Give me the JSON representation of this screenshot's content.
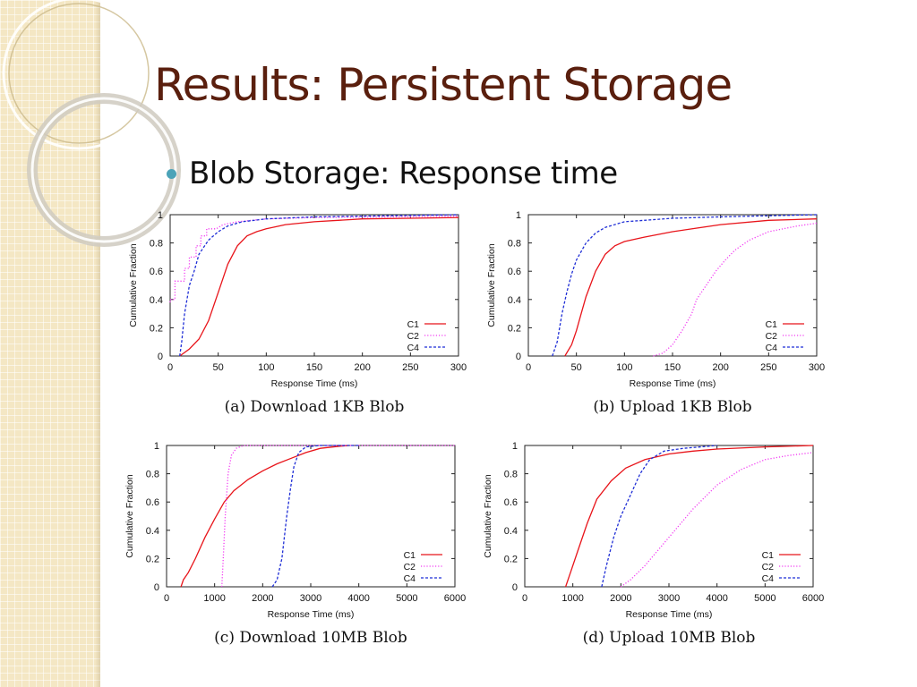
{
  "slide": {
    "title": "Results: Persistent Storage",
    "bullet": "Blob Storage: Response time"
  },
  "colors": {
    "C1": "#e8141a",
    "C2": "#f23af2",
    "C4": "#1f2ed6"
  },
  "chart_data": [
    {
      "type": "line",
      "caption": "(a) Download 1KB Blob",
      "xlabel": "Response Time (ms)",
      "ylabel": "Cumulative Fraction",
      "xlim": [
        0,
        300
      ],
      "ylim": [
        0,
        1
      ],
      "xticks": [
        0,
        50,
        100,
        150,
        200,
        250,
        300
      ],
      "yticks": [
        0,
        0.2,
        0.4,
        0.6,
        0.8,
        1
      ],
      "legend_position": "bottom-right",
      "series": [
        {
          "name": "C1",
          "style": "solid",
          "points": [
            [
              10,
              0
            ],
            [
              20,
              0.05
            ],
            [
              30,
              0.12
            ],
            [
              40,
              0.25
            ],
            [
              50,
              0.45
            ],
            [
              60,
              0.65
            ],
            [
              70,
              0.78
            ],
            [
              80,
              0.85
            ],
            [
              90,
              0.88
            ],
            [
              100,
              0.9
            ],
            [
              120,
              0.93
            ],
            [
              150,
              0.95
            ],
            [
              200,
              0.97
            ],
            [
              250,
              0.975
            ],
            [
              300,
              0.98
            ]
          ]
        },
        {
          "name": "C2",
          "style": "dotted",
          "points": [
            [
              0,
              0.38
            ],
            [
              0,
              0.4
            ],
            [
              5,
              0.4
            ],
            [
              5,
              0.53
            ],
            [
              15,
              0.53
            ],
            [
              15,
              0.62
            ],
            [
              20,
              0.62
            ],
            [
              20,
              0.7
            ],
            [
              27,
              0.7
            ],
            [
              27,
              0.78
            ],
            [
              32,
              0.78
            ],
            [
              32,
              0.85
            ],
            [
              38,
              0.85
            ],
            [
              38,
              0.9
            ],
            [
              48,
              0.9
            ],
            [
              55,
              0.93
            ],
            [
              70,
              0.95
            ],
            [
              100,
              0.97
            ],
            [
              150,
              0.98
            ],
            [
              300,
              0.99
            ]
          ]
        },
        {
          "name": "C4",
          "style": "dashed",
          "points": [
            [
              10,
              0
            ],
            [
              12,
              0.1
            ],
            [
              15,
              0.3
            ],
            [
              20,
              0.5
            ],
            [
              25,
              0.6
            ],
            [
              30,
              0.72
            ],
            [
              40,
              0.82
            ],
            [
              50,
              0.88
            ],
            [
              60,
              0.92
            ],
            [
              75,
              0.95
            ],
            [
              100,
              0.97
            ],
            [
              150,
              0.985
            ],
            [
              200,
              0.99
            ],
            [
              300,
              1
            ]
          ]
        }
      ]
    },
    {
      "type": "line",
      "caption": "(b) Upload 1KB Blob",
      "xlabel": "Response Time (ms)",
      "ylabel": "Cumulative Fraction",
      "xlim": [
        0,
        300
      ],
      "ylim": [
        0,
        1
      ],
      "xticks": [
        0,
        50,
        100,
        150,
        200,
        250,
        300
      ],
      "yticks": [
        0,
        0.2,
        0.4,
        0.6,
        0.8,
        1
      ],
      "legend_position": "bottom-right",
      "series": [
        {
          "name": "C1",
          "style": "solid",
          "points": [
            [
              38,
              0
            ],
            [
              45,
              0.08
            ],
            [
              50,
              0.18
            ],
            [
              55,
              0.3
            ],
            [
              60,
              0.42
            ],
            [
              70,
              0.6
            ],
            [
              80,
              0.72
            ],
            [
              90,
              0.78
            ],
            [
              100,
              0.81
            ],
            [
              120,
              0.84
            ],
            [
              150,
              0.88
            ],
            [
              200,
              0.93
            ],
            [
              250,
              0.96
            ],
            [
              300,
              0.97
            ]
          ]
        },
        {
          "name": "C2",
          "style": "dotted",
          "points": [
            [
              130,
              0
            ],
            [
              140,
              0.02
            ],
            [
              150,
              0.08
            ],
            [
              160,
              0.18
            ],
            [
              170,
              0.3
            ],
            [
              175,
              0.4
            ],
            [
              185,
              0.5
            ],
            [
              195,
              0.6
            ],
            [
              205,
              0.68
            ],
            [
              215,
              0.75
            ],
            [
              230,
              0.82
            ],
            [
              250,
              0.88
            ],
            [
              280,
              0.92
            ],
            [
              300,
              0.94
            ]
          ]
        },
        {
          "name": "C4",
          "style": "dashed",
          "points": [
            [
              25,
              0
            ],
            [
              30,
              0.1
            ],
            [
              35,
              0.3
            ],
            [
              40,
              0.45
            ],
            [
              45,
              0.58
            ],
            [
              50,
              0.68
            ],
            [
              60,
              0.8
            ],
            [
              70,
              0.87
            ],
            [
              80,
              0.91
            ],
            [
              100,
              0.95
            ],
            [
              150,
              0.975
            ],
            [
              200,
              0.985
            ],
            [
              300,
              1
            ]
          ]
        }
      ]
    },
    {
      "type": "line",
      "caption": "(c) Download 10MB Blob",
      "xlabel": "Response Time (ms)",
      "ylabel": "Cumulative Fraction",
      "xlim": [
        0,
        6000
      ],
      "ylim": [
        0,
        1
      ],
      "xticks": [
        0,
        1000,
        2000,
        3000,
        4000,
        5000,
        6000
      ],
      "yticks": [
        0,
        0.2,
        0.4,
        0.6,
        0.8,
        1
      ],
      "legend_position": "bottom-right",
      "series": [
        {
          "name": "C1",
          "style": "solid",
          "points": [
            [
              300,
              0
            ],
            [
              350,
              0.05
            ],
            [
              450,
              0.1
            ],
            [
              600,
              0.2
            ],
            [
              800,
              0.35
            ],
            [
              1000,
              0.48
            ],
            [
              1200,
              0.6
            ],
            [
              1400,
              0.68
            ],
            [
              1700,
              0.76
            ],
            [
              2000,
              0.82
            ],
            [
              2300,
              0.87
            ],
            [
              2600,
              0.91
            ],
            [
              2900,
              0.95
            ],
            [
              3200,
              0.98
            ],
            [
              3600,
              0.995
            ],
            [
              3800,
              1
            ]
          ]
        },
        {
          "name": "C2",
          "style": "dotted",
          "points": [
            [
              1150,
              0
            ],
            [
              1180,
              0.2
            ],
            [
              1220,
              0.5
            ],
            [
              1280,
              0.8
            ],
            [
              1350,
              0.93
            ],
            [
              1450,
              0.98
            ],
            [
              1600,
              1
            ],
            [
              6000,
              1
            ]
          ]
        },
        {
          "name": "C4",
          "style": "dashed",
          "points": [
            [
              2200,
              0
            ],
            [
              2300,
              0.05
            ],
            [
              2400,
              0.2
            ],
            [
              2500,
              0.5
            ],
            [
              2580,
              0.7
            ],
            [
              2650,
              0.85
            ],
            [
              2750,
              0.95
            ],
            [
              2900,
              0.99
            ],
            [
              3200,
              1
            ],
            [
              4000,
              1
            ]
          ]
        }
      ]
    },
    {
      "type": "line",
      "caption": "(d) Upload 10MB Blob",
      "xlabel": "Response Time (ms)",
      "ylabel": "Cumulative Fraction",
      "xlim": [
        0,
        6000
      ],
      "ylim": [
        0,
        1
      ],
      "xticks": [
        0,
        1000,
        2000,
        3000,
        4000,
        5000,
        6000
      ],
      "yticks": [
        0,
        0.2,
        0.4,
        0.6,
        0.8,
        1
      ],
      "legend_position": "bottom-right",
      "series": [
        {
          "name": "C1",
          "style": "solid",
          "points": [
            [
              850,
              0
            ],
            [
              950,
              0.1
            ],
            [
              1100,
              0.25
            ],
            [
              1300,
              0.45
            ],
            [
              1500,
              0.62
            ],
            [
              1800,
              0.75
            ],
            [
              2100,
              0.84
            ],
            [
              2500,
              0.9
            ],
            [
              3000,
              0.94
            ],
            [
              3500,
              0.96
            ],
            [
              4000,
              0.975
            ],
            [
              5000,
              0.99
            ],
            [
              6000,
              1
            ]
          ]
        },
        {
          "name": "C2",
          "style": "dotted",
          "points": [
            [
              2000,
              0
            ],
            [
              2200,
              0.05
            ],
            [
              2500,
              0.15
            ],
            [
              3000,
              0.35
            ],
            [
              3500,
              0.55
            ],
            [
              4000,
              0.72
            ],
            [
              4500,
              0.83
            ],
            [
              5000,
              0.9
            ],
            [
              5500,
              0.93
            ],
            [
              6000,
              0.95
            ]
          ]
        },
        {
          "name": "C4",
          "style": "dashed",
          "points": [
            [
              1600,
              0
            ],
            [
              1700,
              0.15
            ],
            [
              1850,
              0.35
            ],
            [
              2000,
              0.5
            ],
            [
              2200,
              0.65
            ],
            [
              2400,
              0.8
            ],
            [
              2600,
              0.9
            ],
            [
              2900,
              0.96
            ],
            [
              3300,
              0.98
            ],
            [
              4000,
              1
            ]
          ]
        }
      ]
    }
  ]
}
